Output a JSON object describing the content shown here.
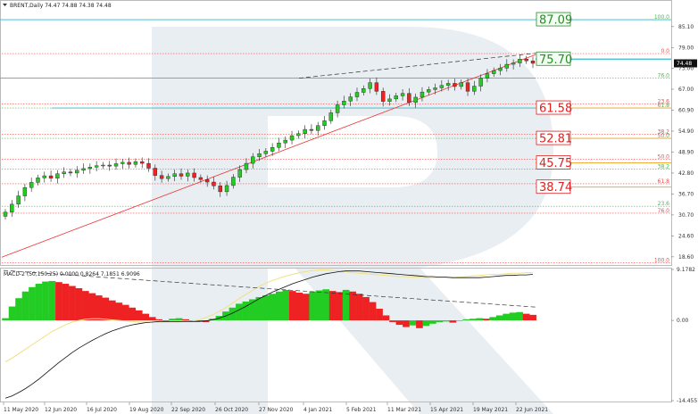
{
  "header": {
    "symbol_line": "BRENT,Daily  74.47 74.88 74.38 74.48",
    "macd_line": "MACD-2 (50,150,25)  0.0000  0.8264  7.1851  6.9096"
  },
  "colors": {
    "bull": "#22cc22",
    "bear": "#ee2222",
    "fibo_red": "#ff4444",
    "fibo_green": "#44bb44",
    "fibo_orange": "#f0a020",
    "teal": "#33bbcc",
    "trend": "#ee3333",
    "macd_line": "#111111",
    "signal_line": "#f0e080",
    "watermark": "#dfe7ee"
  },
  "chart_data": [
    {
      "type": "candlestick",
      "title": "BRENT,Daily",
      "ohlc_last": {
        "open": 74.47,
        "high": 74.88,
        "low": 74.38,
        "close": 74.48
      },
      "ylim": [
        16.5,
        92.0
      ],
      "y_ticks": [
        "18.60",
        "24.60",
        "30.70",
        "36.70",
        "42.80",
        "48.90",
        "54.90",
        "60.90",
        "67.00",
        "73.00",
        "79.00",
        "85.10"
      ],
      "x_ticks": [
        "11 May 2020",
        "12 Jun 2020",
        "16 Jul 2020",
        "19 Aug 2020",
        "22 Sep 2020",
        "26 Oct 2020",
        "27 Nov 2020",
        "4 Jan 2021",
        "5 Feb 2021",
        "11 Mar 2021",
        "15 Apr 2021",
        "19 May 2021",
        "22 Jun 2021"
      ],
      "price_tag": "74.48",
      "close_series": [
        31.5,
        33.8,
        36.2,
        38.6,
        40.1,
        41.4,
        42.0,
        41.3,
        42.6,
        43.1,
        42.8,
        43.6,
        44.1,
        44.5,
        44.9,
        45.1,
        44.8,
        45.5,
        45.9,
        45.3,
        46.1,
        45.6,
        44.2,
        42.1,
        41.2,
        41.8,
        42.6,
        41.9,
        42.8,
        41.5,
        40.9,
        40.2,
        39.1,
        37.4,
        39.2,
        41.6,
        43.8,
        45.6,
        47.5,
        48.4,
        49.1,
        50.2,
        51.5,
        52.3,
        53.6,
        54.2,
        55.4,
        55.1,
        56.5,
        57.9,
        60.2,
        62.5,
        63.6,
        64.8,
        66.1,
        67.2,
        68.9,
        66.4,
        63.5,
        64.2,
        65.1,
        65.8,
        63.2,
        64.7,
        66.2,
        66.9,
        67.4,
        68.1,
        68.7,
        67.8,
        68.9,
        66.4,
        67.9,
        70.2,
        71.5,
        72.4,
        73.1,
        74.2,
        74.6,
        75.7,
        75.2,
        74.48
      ],
      "fibo_levels": [
        {
          "label": "100.0",
          "color": "green",
          "value": 87.09
        },
        {
          "label": "0.0",
          "color": "red",
          "value": 77.3
        },
        {
          "label": "76.0",
          "color": "green",
          "value": 70.2
        },
        {
          "label": "23.6",
          "color": "red",
          "value": 62.7
        },
        {
          "label": "61.8",
          "color": "green",
          "value": 61.58
        },
        {
          "label": "38.2",
          "color": "red",
          "value": 54.0
        },
        {
          "label": "50.0",
          "color": "green",
          "value": 52.81
        },
        {
          "label": "50.0",
          "color": "red",
          "value": 46.8
        },
        {
          "label": "38.2",
          "color": "green",
          "value": 43.9
        },
        {
          "label": "61.8",
          "color": "red",
          "value": 39.7
        },
        {
          "label": "23.6",
          "color": "green",
          "value": 33.2
        },
        {
          "label": "76.0",
          "color": "red",
          "value": 31.2
        },
        {
          "label": "100.0",
          "color": "red",
          "value": 16.9
        }
      ],
      "target_labels": [
        {
          "text": "87.09",
          "value": 87.09,
          "color": "green"
        },
        {
          "text": "75.70",
          "value": 75.7,
          "color": "green"
        },
        {
          "text": "61.58",
          "value": 61.58,
          "color": "red"
        },
        {
          "text": "52.81",
          "value": 52.81,
          "color": "red"
        },
        {
          "text": "45.75",
          "value": 45.75,
          "color": "red"
        },
        {
          "text": "38.74",
          "value": 38.74,
          "color": "red"
        }
      ],
      "trend_line": {
        "from": 18.5,
        "to": 77.0
      },
      "dashed_resistance": {
        "from": 70.2,
        "to": 77.4
      }
    },
    {
      "type": "histogram",
      "title": "MACD-2 (50,150,25)",
      "y_ticks": [
        "9.1782",
        "0.00",
        "-14.4551"
      ],
      "ylim": [
        -14.4551,
        9.1782
      ],
      "histogram_series": [
        0.4,
        2.5,
        4.0,
        5.2,
        6.0,
        6.6,
        7.0,
        7.1,
        6.9,
        6.6,
        6.2,
        5.8,
        5.3,
        4.9,
        4.5,
        4.1,
        3.6,
        3.2,
        2.8,
        2.3,
        1.8,
        1.2,
        0.6,
        0.2,
        -0.1,
        0.3,
        0.4,
        0.2,
        -0.1,
        -0.2,
        -0.3,
        0.3,
        0.8,
        1.6,
        2.3,
        3.0,
        3.4,
        3.8,
        4.2,
        4.5,
        4.8,
        5.2,
        5.5,
        5.3,
        5.0,
        4.8,
        5.2,
        5.4,
        5.6,
        5.3,
        5.1,
        5.5,
        5.2,
        4.8,
        4.2,
        3.3,
        2.1,
        0.9,
        -0.3,
        -0.8,
        -1.2,
        -0.9,
        -1.4,
        -1.0,
        -0.6,
        -0.3,
        -0.2,
        -0.4,
        -0.1,
        0.2,
        0.3,
        0.4,
        0.3,
        0.6,
        0.9,
        1.2,
        1.4,
        1.5,
        1.2,
        1.0
      ],
      "macd_series": [
        -14.0,
        -13.6,
        -13.0,
        -12.3,
        -11.5,
        -10.6,
        -9.6,
        -8.6,
        -7.6,
        -6.7,
        -5.8,
        -5.0,
        -4.3,
        -3.6,
        -3.0,
        -2.4,
        -1.9,
        -1.5,
        -1.1,
        -0.8,
        -0.6,
        -0.4,
        -0.3,
        -0.2,
        -0.2,
        -0.2,
        -0.2,
        -0.2,
        -0.2,
        -0.2,
        -0.1,
        0.1,
        0.4,
        0.8,
        1.3,
        1.9,
        2.5,
        3.2,
        3.9,
        4.5,
        5.1,
        5.6,
        6.1,
        6.6,
        7.0,
        7.4,
        7.8,
        8.1,
        8.4,
        8.6,
        8.8,
        8.9,
        8.9,
        8.9,
        8.8,
        8.7,
        8.6,
        8.5,
        8.4,
        8.3,
        8.2,
        8.1,
        8.0,
        7.9,
        7.9,
        7.8,
        7.8,
        7.7,
        7.7,
        7.7,
        7.7,
        7.7,
        7.8,
        7.9,
        8.0,
        8.1,
        8.1,
        8.2,
        8.2,
        8.3
      ],
      "signal_series": [
        -7.5,
        -6.8,
        -6.0,
        -5.2,
        -4.4,
        -3.6,
        -2.8,
        -2.0,
        -1.4,
        -0.8,
        -0.3,
        0.0,
        0.2,
        0.3,
        0.3,
        0.2,
        0.1,
        0.0,
        -0.1,
        -0.2,
        -0.3,
        -0.3,
        -0.3,
        -0.3,
        -0.3,
        -0.3,
        -0.3,
        -0.2,
        -0.1,
        0.1,
        0.5,
        1.0,
        1.6,
        2.3,
        3.1,
        3.9,
        4.7,
        5.4,
        6.1,
        6.7,
        7.2,
        7.6,
        8.0,
        8.3,
        8.6,
        8.8,
        9.0,
        9.1,
        9.1,
        9.0,
        8.9,
        8.8,
        8.6,
        8.5,
        8.4,
        8.3,
        8.2,
        8.1,
        8.0,
        7.9,
        7.9,
        7.8,
        7.8,
        7.7,
        7.7,
        7.7,
        7.7,
        7.7,
        7.8,
        7.9,
        8.0,
        8.1,
        8.2,
        8.3,
        8.3,
        8.4,
        8.5,
        8.5,
        8.6,
        8.6
      ],
      "dashed_line": {
        "from": 9.0,
        "to": 2.4
      }
    }
  ]
}
